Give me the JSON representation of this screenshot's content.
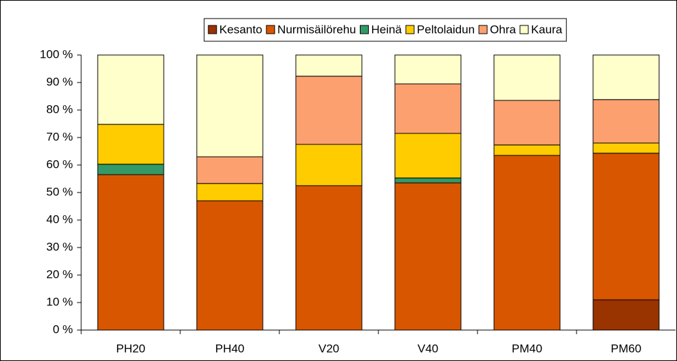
{
  "chart_data": {
    "type": "stacked_bar",
    "categories": [
      "PH20",
      "PH40",
      "V20",
      "V40",
      "PM40",
      "PM60"
    ],
    "series": [
      {
        "name": "Kesanto",
        "color": "#993300",
        "values": [
          0,
          0,
          0,
          0,
          0,
          11
        ]
      },
      {
        "name": "Nurmisäilörehu",
        "color": "#d95600",
        "values": [
          56.5,
          47,
          52.5,
          53.5,
          63.5,
          53.3
        ]
      },
      {
        "name": "Heinä",
        "color": "#339966",
        "values": [
          3.8,
          0,
          0,
          1.8,
          0,
          0
        ]
      },
      {
        "name": "Peltolaidun",
        "color": "#ffcc00",
        "values": [
          14.5,
          6.3,
          15,
          16.2,
          3.8,
          3.7
        ]
      },
      {
        "name": "Ohra",
        "color": "#fca070",
        "values": [
          0,
          9.7,
          24.8,
          18,
          16.2,
          15.8
        ]
      },
      {
        "name": "Kaura",
        "color": "#ffffcc",
        "values": [
          25.2,
          37,
          7.7,
          10.5,
          16.5,
          16.2
        ]
      }
    ],
    "ylim": [
      0,
      100
    ],
    "yticks": [
      {
        "value": 0,
        "label": "0 %"
      },
      {
        "value": 10,
        "label": "10 %"
      },
      {
        "value": 20,
        "label": "20 %"
      },
      {
        "value": 30,
        "label": "30 %"
      },
      {
        "value": 40,
        "label": "40 %"
      },
      {
        "value": 50,
        "label": "50 %"
      },
      {
        "value": 60,
        "label": "60 %"
      },
      {
        "value": 70,
        "label": "70 %"
      },
      {
        "value": 80,
        "label": "80 %"
      },
      {
        "value": 90,
        "label": "90 %"
      },
      {
        "value": 100,
        "label": "100 %"
      }
    ],
    "legend": "top"
  }
}
